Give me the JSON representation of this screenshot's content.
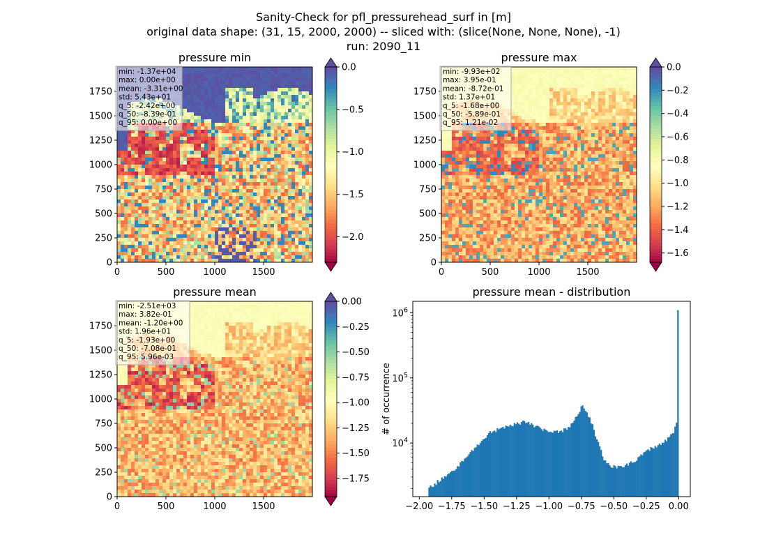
{
  "figure": {
    "title_lines": [
      "Sanity-Check for pfl_pressurehead_surf in [m]",
      "original data shape: (31, 15, 2000, 2000) -- sliced with: (slice(None, None, None), -1)",
      "run: 2090_11"
    ]
  },
  "chart_data": [
    {
      "type": "heatmap",
      "title": "pressure min",
      "colormap": "Spectral",
      "extend": "both",
      "over_color": "#5e4fa2",
      "under_color": "#9e0142",
      "xlim": [
        0,
        2000
      ],
      "ylim": [
        0,
        2000
      ],
      "xticks": [
        0,
        500,
        1000,
        1500
      ],
      "yticks": [
        0,
        250,
        500,
        750,
        1000,
        1250,
        1500,
        1750
      ],
      "colorbar": {
        "range": [
          -2.3,
          0.0
        ],
        "ticks": [
          0.0,
          -0.5,
          -1.0,
          -1.5,
          -2.0
        ],
        "tick_labels": [
          "0.0",
          "−0.5",
          "−1.0",
          "−1.5",
          "−2.0"
        ]
      },
      "stats": [
        "min: -1.37e+04",
        "max: 0.00e+00",
        "mean: -3.31e+00",
        "std: 5.43e+01",
        "q_5: -2.42e+00",
        "q_50: -8.39e-01",
        "q_95: 0.00e+00"
      ]
    },
    {
      "type": "heatmap",
      "title": "pressure max",
      "colormap": "Spectral",
      "extend": "both",
      "over_color": "#5e4fa2",
      "under_color": "#9e0142",
      "xlim": [
        0,
        2000
      ],
      "ylim": [
        0,
        2000
      ],
      "xticks": [
        0,
        500,
        1000,
        1500
      ],
      "yticks": [
        0,
        250,
        500,
        750,
        1000,
        1250,
        1500,
        1750
      ],
      "colorbar": {
        "range": [
          -1.68,
          0.0
        ],
        "ticks": [
          0.0,
          -0.2,
          -0.4,
          -0.6,
          -0.8,
          -1.0,
          -1.2,
          -1.4,
          -1.6
        ],
        "tick_labels": [
          "0.0",
          "−0.2",
          "−0.4",
          "−0.6",
          "−0.8",
          "−1.0",
          "−1.2",
          "−1.4",
          "−1.6"
        ]
      },
      "stats": [
        "min: -9.93e+02",
        "max: 3.95e-01",
        "mean: -8.72e-01",
        "std: 1.37e+01",
        "q_5: -1.68e+00",
        "q_50: -5.89e-01",
        "q_95: 1.21e-02"
      ]
    },
    {
      "type": "heatmap",
      "title": "pressure mean",
      "colormap": "Spectral",
      "extend": "both",
      "over_color": "#5e4fa2",
      "under_color": "#9e0142",
      "xlim": [
        0,
        2000
      ],
      "ylim": [
        0,
        2000
      ],
      "xticks": [
        0,
        500,
        1000,
        1500
      ],
      "yticks": [
        0,
        250,
        500,
        750,
        1000,
        1250,
        1500,
        1750
      ],
      "colorbar": {
        "range": [
          -1.93,
          0.0
        ],
        "ticks": [
          0.0,
          -0.25,
          -0.5,
          -0.75,
          -1.0,
          -1.25,
          -1.5,
          -1.75
        ],
        "tick_labels": [
          "0.00",
          "−0.25",
          "−0.50",
          "−0.75",
          "−1.00",
          "−1.25",
          "−1.50",
          "−1.75"
        ]
      },
      "stats": [
        "min: -2.51e+03",
        "max: 3.82e-01",
        "mean: -1.20e+00",
        "std: 1.96e+01",
        "q_5: -1.93e+00",
        "q_50: -7.08e-01",
        "q_95: 5.96e-03"
      ]
    },
    {
      "type": "bar",
      "title": "pressure mean - distribution",
      "ylabel": "# of occurrence",
      "xlabel": "",
      "ylog": true,
      "bar_color": "#1f77b4",
      "xlim": [
        -2.05,
        0.09
      ],
      "ylim": [
        1500,
        1500000
      ],
      "xticks": [
        -2.0,
        -1.75,
        -1.5,
        -1.25,
        -1.0,
        -0.75,
        -0.5,
        -0.25,
        0.0
      ],
      "xtick_labels": [
        "−2.00",
        "−1.75",
        "−1.50",
        "−1.25",
        "−1.00",
        "−0.75",
        "−0.50",
        "−0.25",
        "0.00"
      ],
      "yticks": [
        {
          "value": 10000,
          "base": "10",
          "exp": "4"
        },
        {
          "value": 100000,
          "base": "10",
          "exp": "5"
        },
        {
          "value": 1000000,
          "base": "10",
          "exp": "6"
        }
      ],
      "bins": {
        "start": -1.93,
        "end": 0.0,
        "count": 176
      },
      "profile": [
        [
          -1.93,
          2000
        ],
        [
          -1.85,
          2600
        ],
        [
          -1.75,
          3600
        ],
        [
          -1.65,
          5500
        ],
        [
          -1.6,
          7500
        ],
        [
          -1.55,
          9500
        ],
        [
          -1.5,
          12000
        ],
        [
          -1.45,
          14500
        ],
        [
          -1.4,
          16000
        ],
        [
          -1.3,
          18500
        ],
        [
          -1.2,
          21000
        ],
        [
          -1.15,
          20000
        ],
        [
          -1.1,
          18000
        ],
        [
          -1.05,
          16000
        ],
        [
          -1.0,
          15000
        ],
        [
          -0.95,
          14500
        ],
        [
          -0.9,
          15000
        ],
        [
          -0.85,
          17500
        ],
        [
          -0.8,
          23000
        ],
        [
          -0.77,
          30000
        ],
        [
          -0.74,
          38000
        ],
        [
          -0.72,
          34000
        ],
        [
          -0.7,
          28000
        ],
        [
          -0.67,
          20000
        ],
        [
          -0.64,
          13000
        ],
        [
          -0.61,
          8500
        ],
        [
          -0.58,
          6000
        ],
        [
          -0.55,
          4800
        ],
        [
          -0.5,
          4300
        ],
        [
          -0.45,
          4300
        ],
        [
          -0.4,
          4600
        ],
        [
          -0.35,
          5200
        ],
        [
          -0.3,
          6200
        ],
        [
          -0.25,
          7500
        ],
        [
          -0.15,
          9500
        ],
        [
          -0.08,
          11500
        ],
        [
          -0.04,
          14000
        ],
        [
          -0.02,
          19000
        ],
        [
          -0.01,
          29000
        ],
        [
          0.0,
          1100000
        ]
      ]
    }
  ]
}
